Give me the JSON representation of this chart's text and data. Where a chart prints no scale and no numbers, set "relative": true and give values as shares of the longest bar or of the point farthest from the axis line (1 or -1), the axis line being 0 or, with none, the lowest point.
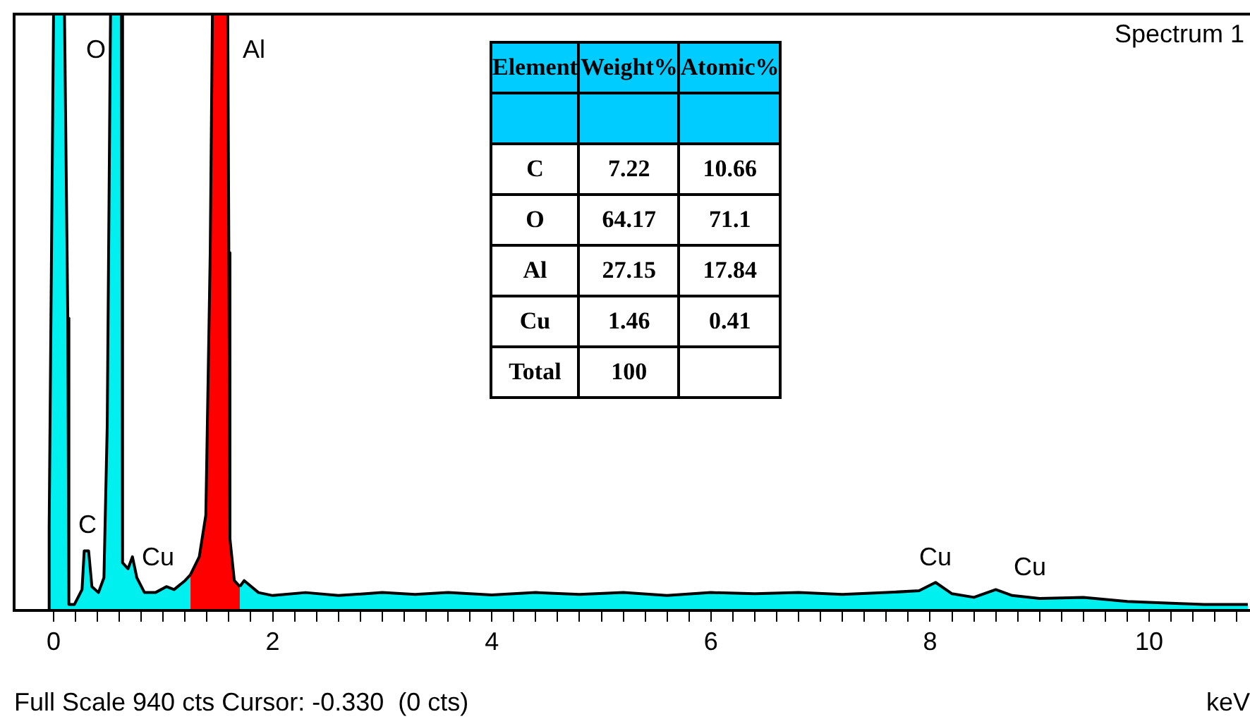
{
  "chart_data": [
    {
      "type": "area",
      "title": "Spectrum 1",
      "xlabel": "keV",
      "relative": true,
      "grid": false,
      "legend": false,
      "xlim": [
        -0.36,
        10.92
      ],
      "xticks": [
        0,
        {
          "value": 0.2,
          "label": null
        },
        {
          "value": 0.4,
          "label": null
        },
        {
          "value": 0.6,
          "label": null
        },
        {
          "value": 0.8,
          "label": null
        },
        {
          "value": 1,
          "label": null
        },
        {
          "value": 1.2,
          "label": null
        },
        {
          "value": 1.4,
          "label": null
        },
        {
          "value": 1.6,
          "label": null
        },
        {
          "value": 1.8,
          "label": null
        },
        2,
        {
          "value": 2.2,
          "label": null
        },
        {
          "value": 2.4,
          "label": null
        },
        {
          "value": 2.6,
          "label": null
        },
        {
          "value": 2.8,
          "label": null
        },
        {
          "value": 3,
          "label": null
        },
        {
          "value": 3.2,
          "label": null
        },
        {
          "value": 3.4,
          "label": null
        },
        {
          "value": 3.6,
          "label": null
        },
        {
          "value": 3.8,
          "label": null
        },
        4,
        {
          "value": 4.2,
          "label": null
        },
        {
          "value": 4.4,
          "label": null
        },
        {
          "value": 4.6,
          "label": null
        },
        {
          "value": 4.8,
          "label": null
        },
        {
          "value": 5,
          "label": null
        },
        {
          "value": 5.2,
          "label": null
        },
        {
          "value": 5.4,
          "label": null
        },
        {
          "value": 5.6,
          "label": null
        },
        {
          "value": 5.8,
          "label": null
        },
        6,
        {
          "value": 6.2,
          "label": null
        },
        {
          "value": 6.4,
          "label": null
        },
        {
          "value": 6.6,
          "label": null
        },
        {
          "value": 6.8,
          "label": null
        },
        {
          "value": 7,
          "label": null
        },
        {
          "value": 7.2,
          "label": null
        },
        {
          "value": 7.4,
          "label": null
        },
        {
          "value": 7.6,
          "label": null
        },
        {
          "value": 7.8,
          "label": null
        },
        8,
        {
          "value": 8.2,
          "label": null
        },
        {
          "value": 8.4,
          "label": null
        },
        {
          "value": 8.6,
          "label": null
        },
        {
          "value": 8.8,
          "label": null
        },
        {
          "value": 9,
          "label": null
        },
        {
          "value": 9.2,
          "label": null
        },
        {
          "value": 9.4,
          "label": null
        },
        {
          "value": 9.6,
          "label": null
        },
        {
          "value": 9.8,
          "label": null
        },
        10,
        {
          "value": 10.2,
          "label": null
        },
        {
          "value": 10.4,
          "label": null
        },
        {
          "value": 10.6,
          "label": null
        },
        {
          "value": 10.8,
          "label": null
        }
      ],
      "series": [
        {
          "color": "#00f0f0",
          "x": [
            -0.05,
            -0.04,
            0,
            0.1,
            0.13,
            0.14,
            0.19,
            0.26,
            0.28,
            0.32,
            0.35,
            0.41,
            0.46,
            0.49,
            0.52,
            0.62,
            0.63,
            0.68,
            0.72,
            0.76,
            0.83,
            0.93,
            1.03,
            1.1,
            1.2,
            1.25,
            1.26,
            1.7,
            1.74,
            1.87,
            2,
            2.3,
            2.6,
            3,
            3.3,
            3.6,
            4,
            4.4,
            4.8,
            5.2,
            5.6,
            6,
            6.4,
            6.8,
            7.2,
            7.6,
            7.9,
            8.05,
            8.2,
            8.4,
            8.6,
            8.75,
            9,
            9.4,
            9.8,
            10.2,
            10.5,
            10.9
          ],
          "values": [
            0,
            0.14,
            1,
            1,
            0.49,
            0.01,
            0.01,
            0.035,
            0.1,
            0.1,
            0.04,
            0.03,
            0.055,
            0.31,
            1,
            1,
            0.08,
            0.07,
            0.09,
            0.055,
            0.03,
            0.03,
            0.04,
            0.035,
            0.05,
            0.06,
            null,
            0.04,
            0.05,
            0.03,
            0.025,
            0.03,
            0.025,
            0.03,
            0.027,
            0.03,
            0.026,
            0.03,
            0.027,
            0.03,
            0.025,
            0.03,
            0.028,
            0.03,
            0.027,
            0.03,
            0.033,
            0.047,
            0.028,
            0.022,
            0.035,
            0.025,
            0.02,
            0.022,
            0.015,
            0.012,
            0.01,
            0.01
          ]
        },
        {
          "color": "#ff0000",
          "x": [
            1.25,
            1.33,
            1.39,
            1.43,
            1.45,
            1.59,
            1.6,
            1.61,
            1.65,
            1.7
          ],
          "values": [
            0.06,
            0.09,
            0.16,
            0.6,
            1,
            1,
            0.6,
            0.12,
            0.05,
            0.04
          ]
        }
      ],
      "annotations": [
        "C",
        "O",
        "Al",
        "Cu",
        "Cu",
        "Cu",
        "Full Scale 940 cts Cursor: -0.330  (0 cts)"
      ]
    },
    {
      "type": "other",
      "xlabel": "Element",
      "data_labels": true,
      "categories": [
        "C",
        "O",
        "Al",
        "Cu",
        "Total"
      ],
      "series": [
        {
          "name": "Weight%",
          "values": [
            7.22,
            64.17,
            27.15,
            1.46,
            100
          ]
        },
        {
          "name": "Atomic%",
          "values": [
            10.66,
            71.1,
            17.84,
            0.41,
            null
          ]
        }
      ]
    }
  ]
}
